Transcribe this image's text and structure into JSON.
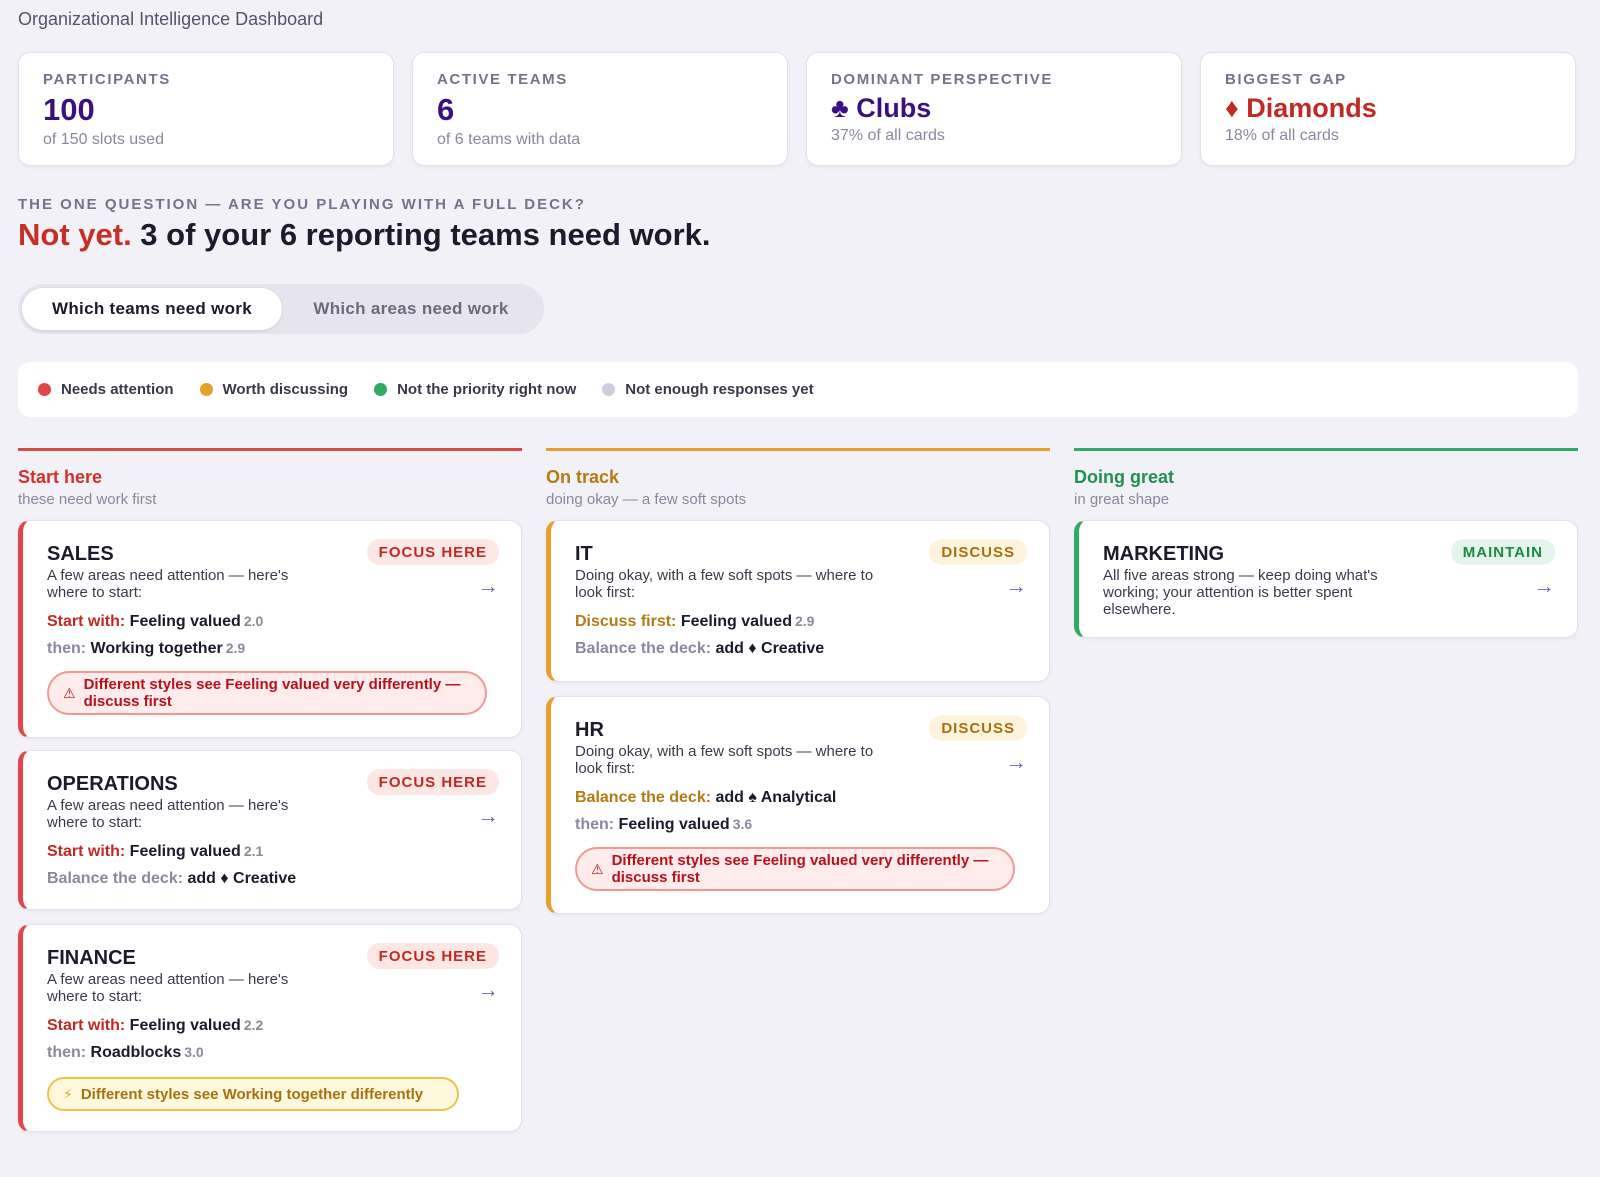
{
  "header": {
    "subtitle": "Organizational Intelligence Dashboard"
  },
  "stats": [
    {
      "label": "PARTICIPANTS",
      "value": "100",
      "sub": "of 150 slots used"
    },
    {
      "label": "ACTIVE TEAMS",
      "value": "6",
      "sub": "of 6 teams with data"
    },
    {
      "label": "DOMINANT PERSPECTIVE",
      "value": "♣ Clubs",
      "sub": "37% of all cards"
    },
    {
      "label": "BIGGEST GAP",
      "value": "♦ Diamonds",
      "sub": "18% of all cards"
    }
  ],
  "question": {
    "label": "THE ONE QUESTION — ARE YOU PLAYING WITH A FULL DECK?",
    "answer_no": "Not yet.",
    "answer_rest": " 3 of your 6 reporting teams need work."
  },
  "toggle": {
    "teams": "Which teams need work",
    "areas": "Which areas need work"
  },
  "legend": [
    {
      "label": "Needs attention",
      "color": "#e0474a"
    },
    {
      "label": "Worth discussing",
      "color": "#e6a02e"
    },
    {
      "label": "Not the priority right now",
      "color": "#2faa63"
    },
    {
      "label": "Not enough responses yet",
      "color": "#cfcde0"
    }
  ],
  "columns": [
    {
      "title": "Start here",
      "sub": "these need work first",
      "color": "#d2302a"
    },
    {
      "title": "On track",
      "sub": "doing okay — a few soft spots",
      "color": "#b67a10"
    },
    {
      "title": "Doing great",
      "sub": "in great shape",
      "color": "#1f9150"
    }
  ],
  "cards": {
    "sales": {
      "team": "SALES",
      "badge": "FOCUS HERE",
      "arrow": "→",
      "desc": "A few areas need attention — here's where to start:",
      "l1k": "Start with:",
      "l1v": " Feeling valued",
      "l1s": "2.0",
      "l2k": "then:",
      "l2v": " Working together",
      "l2s": "2.9",
      "warn_icon": "⚠",
      "warn": "Different styles see Feeling valued very differently — discuss first"
    },
    "operations": {
      "team": "OPERATIONS",
      "badge": "FOCUS HERE",
      "arrow": "→",
      "desc": "A few areas need attention — here's where to start:",
      "l1k": "Start with:",
      "l1v": " Feeling valued",
      "l1s": "2.1",
      "l2k": "Balance the deck:",
      "l2v": " add ♦ Creative"
    },
    "finance": {
      "team": "FINANCE",
      "badge": "FOCUS HERE",
      "arrow": "→",
      "desc": "A few areas need attention — here's where to start:",
      "l1k": "Start with:",
      "l1v": " Feeling valued",
      "l1s": "2.2",
      "l2k": "then:",
      "l2v": " Roadblocks",
      "l2s": "3.0",
      "warn_icon": "⚡",
      "warn": "Different styles see Working together differently"
    },
    "it": {
      "team": "IT",
      "badge": "DISCUSS",
      "arrow": "→",
      "desc": "Doing okay, with a few soft spots — where to look first:",
      "l1k": "Discuss first:",
      "l1v": " Feeling valued",
      "l1s": "2.9",
      "l2k": "Balance the deck:",
      "l2v": " add ♦ Creative"
    },
    "hr": {
      "team": "HR",
      "badge": "DISCUSS",
      "arrow": "→",
      "desc": "Doing okay, with a few soft spots — where to look first:",
      "l1k": "Balance the deck:",
      "l1v": " add ♠ Analytical",
      "l2k": "then:",
      "l2v": " Feeling valued",
      "l2s": "3.6",
      "warn_icon": "⚠",
      "warn": "Different styles see Feeling valued very differently — discuss first"
    },
    "marketing": {
      "team": "MARKETING",
      "badge": "MAINTAIN",
      "arrow": "→",
      "desc": "All five areas strong — keep doing what's working; your attention is better spent elsewhere."
    }
  }
}
